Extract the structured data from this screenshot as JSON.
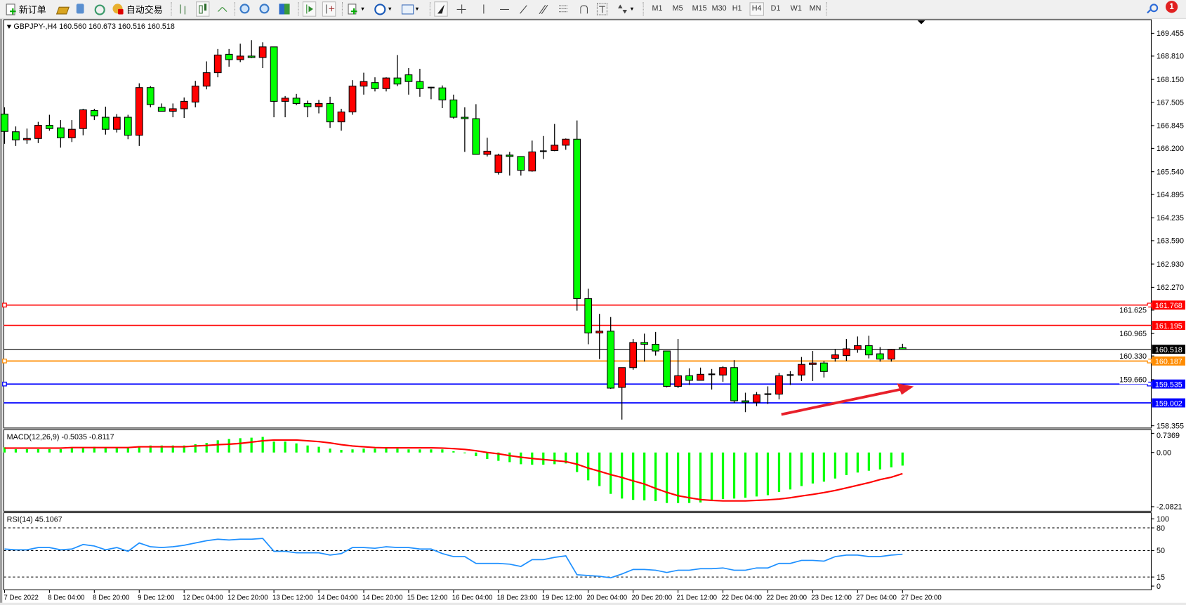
{
  "toolbar": {
    "new_order_label": "新订单",
    "autotrading_label": "自动交易",
    "timeframes": [
      "M1",
      "M5",
      "M15",
      "M30",
      "H1",
      "H4",
      "D1",
      "W1",
      "MN"
    ],
    "active_timeframe": "H4",
    "notification_count": "1",
    "icons": [
      "new-order-icon",
      "gold-bars-icon",
      "history-center-icon",
      "signals-icon",
      "autotrading-icon",
      "bar-chart-icon",
      "candlestick-icon",
      "line-chart-icon",
      "zoom-in-icon",
      "zoom-out-icon",
      "tile-windows-icon",
      "auto-scroll-icon",
      "chart-shift-icon",
      "indicators-icon",
      "periods-icon",
      "templates-icon",
      "cursor-icon",
      "crosshair-icon",
      "vertical-line-icon",
      "horizontal-line-icon",
      "trendline-icon",
      "equidistant-channel-icon",
      "fibonacci-icon",
      "text-icon",
      "text-label-icon",
      "arrows-icon",
      "search-icon",
      "notification-icon"
    ]
  },
  "chart": {
    "header": "GBPJPY-,H4  160.560 160.673 160.516 160.518",
    "colors": {
      "bull": "#ff0000",
      "bear": "#00ff00",
      "macd_hist": "#00ff00",
      "macd_signal": "#ff0000",
      "rsi": "#1e90ff",
      "annotation_arrow": "#e8202a"
    }
  },
  "chart_data": {
    "type": "candlestick",
    "symbol": "GBPJPY-",
    "timeframe": "H4",
    "ohlc_header": {
      "open": 160.56,
      "high": 160.673,
      "low": 160.516,
      "close": 160.518
    },
    "y_ticks": [
      "169.455",
      "168.810",
      "168.150",
      "167.505",
      "166.845",
      "166.200",
      "165.540",
      "164.895",
      "164.235",
      "163.590",
      "162.930",
      "162.270",
      "161.625",
      "160.965",
      "160.330",
      "159.660",
      "158.355"
    ],
    "ylim": [
      158.355,
      169.455
    ],
    "x_tick_labels": [
      "7 Dec 2022",
      "8 Dec 04:00",
      "8 Dec 20:00",
      "9 Dec 12:00",
      "12 Dec 04:00",
      "12 Dec 20:00",
      "13 Dec 12:00",
      "14 Dec 04:00",
      "14 Dec 20:00",
      "15 Dec 12:00",
      "16 Dec 04:00",
      "18 Dec 23:00",
      "19 Dec 12:00",
      "20 Dec 04:00",
      "20 Dec 20:00",
      "21 Dec 12:00",
      "22 Dec 04:00",
      "22 Dec 20:00",
      "23 Dec 12:00",
      "27 Dec 04:00",
      "27 Dec 20:00"
    ],
    "candles_ohlc": [
      [
        167.17,
        167.36,
        166.33,
        166.68
      ],
      [
        166.67,
        166.82,
        166.27,
        166.44
      ],
      [
        166.44,
        166.76,
        166.33,
        166.48
      ],
      [
        166.48,
        166.95,
        166.35,
        166.85
      ],
      [
        166.85,
        167.15,
        166.7,
        166.76
      ],
      [
        166.78,
        167.0,
        166.22,
        166.5
      ],
      [
        166.5,
        167.0,
        166.38,
        166.74
      ],
      [
        166.76,
        167.32,
        166.57,
        167.29
      ],
      [
        167.27,
        167.32,
        167.0,
        167.12
      ],
      [
        167.08,
        167.38,
        166.59,
        166.74
      ],
      [
        166.74,
        167.17,
        166.65,
        167.08
      ],
      [
        167.08,
        167.15,
        166.46,
        166.57
      ],
      [
        166.57,
        168.04,
        166.27,
        167.92
      ],
      [
        167.92,
        167.96,
        167.36,
        167.44
      ],
      [
        167.36,
        167.47,
        167.25,
        167.25
      ],
      [
        167.25,
        167.47,
        167.08,
        167.32
      ],
      [
        167.32,
        167.64,
        167.06,
        167.53
      ],
      [
        167.51,
        168.11,
        167.36,
        167.96
      ],
      [
        167.96,
        168.66,
        167.87,
        168.34
      ],
      [
        168.34,
        169.01,
        168.21,
        168.84
      ],
      [
        168.86,
        169.01,
        168.51,
        168.71
      ],
      [
        168.71,
        169.16,
        168.64,
        168.81
      ],
      [
        168.81,
        169.26,
        168.75,
        168.77
      ],
      [
        168.77,
        169.2,
        168.47,
        169.07
      ],
      [
        169.07,
        169.07,
        167.08,
        167.53
      ],
      [
        167.53,
        167.68,
        167.08,
        167.62
      ],
      [
        167.62,
        167.74,
        167.42,
        167.47
      ],
      [
        167.47,
        167.55,
        167.08,
        167.38
      ],
      [
        167.38,
        167.57,
        167.19,
        167.47
      ],
      [
        167.47,
        167.66,
        166.78,
        166.95
      ],
      [
        166.95,
        167.32,
        166.7,
        167.23
      ],
      [
        167.23,
        168.13,
        167.15,
        167.96
      ],
      [
        167.96,
        168.34,
        167.72,
        168.09
      ],
      [
        168.06,
        168.21,
        167.81,
        167.89
      ],
      [
        167.89,
        168.21,
        167.81,
        168.19
      ],
      [
        168.19,
        168.84,
        167.96,
        168.02
      ],
      [
        168.28,
        168.47,
        167.72,
        168.09
      ],
      [
        168.09,
        168.45,
        167.66,
        167.89
      ],
      [
        167.92,
        167.94,
        167.59,
        167.91
      ],
      [
        167.91,
        167.98,
        167.34,
        167.57
      ],
      [
        167.57,
        167.72,
        167.04,
        167.08
      ],
      [
        167.08,
        167.36,
        166.1,
        167.04
      ],
      [
        167.04,
        167.45,
        166.03,
        166.03
      ],
      [
        166.03,
        166.5,
        165.97,
        166.12
      ],
      [
        165.52,
        166.05,
        165.46,
        166.01
      ],
      [
        166.01,
        166.1,
        165.43,
        165.97
      ],
      [
        165.97,
        165.97,
        165.43,
        165.58
      ],
      [
        165.56,
        166.42,
        165.54,
        166.1
      ],
      [
        166.12,
        166.55,
        165.9,
        166.12
      ],
      [
        166.14,
        166.89,
        166.12,
        166.29
      ],
      [
        166.29,
        166.48,
        166.16,
        166.46
      ],
      [
        166.46,
        166.99,
        161.61,
        161.95
      ],
      [
        161.95,
        162.23,
        160.66,
        160.98
      ],
      [
        160.98,
        161.52,
        160.24,
        161.03
      ],
      [
        161.03,
        161.43,
        159.4,
        159.42
      ],
      [
        159.44,
        160.0,
        158.53,
        160.0
      ],
      [
        160.0,
        160.81,
        159.94,
        160.71
      ],
      [
        160.71,
        160.96,
        160.17,
        160.66
      ],
      [
        160.66,
        161.01,
        160.34,
        160.47
      ],
      [
        160.47,
        160.47,
        159.44,
        159.47
      ],
      [
        159.47,
        160.81,
        159.42,
        159.77
      ],
      [
        159.77,
        159.98,
        159.51,
        159.64
      ],
      [
        159.64,
        160.0,
        159.64,
        159.81
      ],
      [
        159.81,
        159.96,
        159.38,
        159.81
      ],
      [
        159.79,
        160.04,
        159.6,
        160.0
      ],
      [
        160.0,
        160.21,
        159.0,
        159.06
      ],
      [
        159.06,
        159.29,
        158.74,
        159.02
      ],
      [
        159.02,
        159.31,
        158.91,
        159.23
      ],
      [
        159.23,
        159.47,
        158.97,
        159.25
      ],
      [
        159.25,
        159.85,
        159.1,
        159.77
      ],
      [
        159.77,
        159.9,
        159.51,
        159.79
      ],
      [
        159.79,
        160.3,
        159.62,
        160.09
      ],
      [
        160.09,
        160.47,
        159.62,
        160.13
      ],
      [
        160.13,
        160.19,
        159.72,
        159.89
      ],
      [
        160.26,
        160.53,
        160.17,
        160.36
      ],
      [
        160.34,
        160.81,
        160.19,
        160.53
      ],
      [
        160.51,
        160.88,
        160.42,
        160.62
      ],
      [
        160.62,
        160.9,
        160.26,
        160.36
      ],
      [
        160.39,
        160.58,
        160.17,
        160.24
      ],
      [
        160.24,
        160.53,
        160.17,
        160.51
      ],
      [
        160.56,
        160.673,
        160.516,
        160.518
      ]
    ],
    "horizontal_lines": [
      {
        "price": "161.768",
        "color": "#ff0000",
        "anchors": true
      },
      {
        "price": "161.195",
        "color": "#ff0000",
        "anchors": false
      },
      {
        "price": "160.518",
        "color": "#000000",
        "anchors": false,
        "bid": true
      },
      {
        "price": "160.187",
        "color": "#ff8c00",
        "anchors": true
      },
      {
        "price": "159.535",
        "color": "#0000ff",
        "anchors": true
      },
      {
        "price": "159.002",
        "color": "#0000ff",
        "anchors": false
      }
    ],
    "macd": {
      "label": "MACD(12,26,9) -0.5035 -0.8117",
      "y_ticks": [
        "0.7369",
        "0.00",
        "-2.0821"
      ],
      "ylim": [
        -2.0821,
        0.7369
      ],
      "histogram": [
        0.2,
        0.13,
        0.13,
        0.13,
        0.13,
        0.13,
        0.17,
        0.17,
        0.22,
        0.17,
        0.17,
        0.17,
        0.25,
        0.27,
        0.27,
        0.27,
        0.27,
        0.32,
        0.37,
        0.47,
        0.52,
        0.55,
        0.57,
        0.6,
        0.42,
        0.42,
        0.35,
        0.27,
        0.22,
        0.15,
        0.1,
        0.12,
        0.15,
        0.15,
        0.17,
        0.15,
        0.12,
        0.12,
        0.12,
        0.12,
        0.05,
        -0.02,
        -0.14,
        -0.25,
        -0.32,
        -0.37,
        -0.45,
        -0.47,
        -0.47,
        -0.45,
        -0.42,
        -0.75,
        -1.07,
        -1.29,
        -1.59,
        -1.77,
        -1.82,
        -1.84,
        -1.87,
        -1.94,
        -1.94,
        -1.94,
        -1.92,
        -1.87,
        -1.79,
        -1.77,
        -1.74,
        -1.69,
        -1.64,
        -1.52,
        -1.42,
        -1.29,
        -1.19,
        -1.12,
        -1.0,
        -0.87,
        -0.77,
        -0.7,
        -0.65,
        -0.57,
        -0.5035
      ],
      "signal": [
        0.17,
        0.17,
        0.17,
        0.17,
        0.17,
        0.17,
        0.19,
        0.19,
        0.19,
        0.19,
        0.19,
        0.19,
        0.22,
        0.22,
        0.22,
        0.22,
        0.22,
        0.25,
        0.27,
        0.3,
        0.32,
        0.35,
        0.4,
        0.45,
        0.48,
        0.48,
        0.48,
        0.45,
        0.42,
        0.37,
        0.3,
        0.25,
        0.22,
        0.19,
        0.18,
        0.18,
        0.18,
        0.18,
        0.18,
        0.17,
        0.15,
        0.12,
        0.07,
        0.0,
        -0.05,
        -0.12,
        -0.18,
        -0.23,
        -0.27,
        -0.31,
        -0.35,
        -0.45,
        -0.6,
        -0.72,
        -0.85,
        -0.96,
        -1.09,
        -1.21,
        -1.38,
        -1.53,
        -1.66,
        -1.74,
        -1.81,
        -1.84,
        -1.86,
        -1.86,
        -1.86,
        -1.84,
        -1.82,
        -1.79,
        -1.74,
        -1.67,
        -1.61,
        -1.54,
        -1.46,
        -1.36,
        -1.26,
        -1.16,
        -1.04,
        -0.95,
        -0.8117
      ]
    },
    "rsi": {
      "label": "RSI(14) 45.1067",
      "y_ticks": [
        "100",
        "80",
        "50",
        "15",
        "0"
      ],
      "levels": [
        80,
        50,
        15
      ],
      "ylim": [
        0,
        100
      ],
      "values": [
        52,
        51,
        51,
        54,
        54,
        51,
        52,
        58,
        56,
        51,
        54,
        49,
        60,
        55,
        54,
        55,
        57,
        60,
        63,
        65,
        64,
        65,
        65,
        66,
        49,
        49,
        47,
        47,
        47,
        44,
        46,
        54,
        54,
        53,
        55,
        54,
        54,
        52,
        52,
        46,
        42,
        42,
        33,
        33,
        33,
        32,
        29,
        38,
        38,
        41,
        43,
        18,
        17,
        16,
        14,
        19,
        25,
        25,
        24,
        21,
        24,
        24,
        26,
        26,
        27,
        24,
        24,
        27,
        27,
        33,
        33,
        37,
        37,
        36,
        42,
        44,
        44,
        42,
        42,
        44,
        45.1067
      ]
    }
  }
}
